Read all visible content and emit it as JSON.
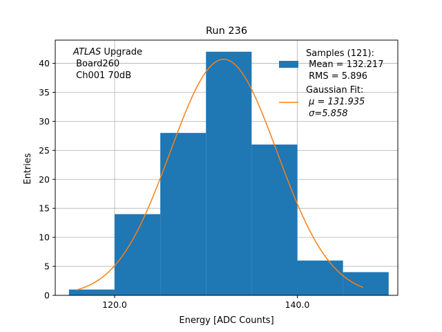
{
  "chart_data": {
    "type": "bar",
    "title": "Run 236",
    "xlabel": "Energy [ADC Counts]",
    "ylabel": "Entries",
    "xlim": [
      113.5,
      151.0
    ],
    "ylim": [
      0,
      44
    ],
    "x_ticks": [
      120.0,
      140.0
    ],
    "x_tick_labels": [
      "120.0",
      "140.0"
    ],
    "y_ticks": [
      0,
      5,
      10,
      15,
      20,
      25,
      30,
      35,
      40
    ],
    "y_tick_labels": [
      "0",
      "5",
      "10",
      "15",
      "20",
      "25",
      "30",
      "35",
      "40"
    ],
    "grid": true,
    "bins": [
      {
        "x0": 115.0,
        "x1": 120.0,
        "count": 1
      },
      {
        "x0": 120.0,
        "x1": 125.0,
        "count": 14
      },
      {
        "x0": 125.0,
        "x1": 130.0,
        "count": 28
      },
      {
        "x0": 130.0,
        "x1": 135.0,
        "count": 42
      },
      {
        "x0": 135.0,
        "x1": 140.0,
        "count": 26
      },
      {
        "x0": 140.0,
        "x1": 145.0,
        "count": 6
      },
      {
        "x0": 145.0,
        "x1": 150.0,
        "count": 4
      }
    ],
    "fit": {
      "type": "gaussian",
      "amplitude": 40.7,
      "mu": 131.935,
      "sigma": 5.858,
      "x_range": [
        115.8,
        147.2
      ]
    },
    "colors": {
      "bars": "#1f77b4",
      "fit": "#ff7f0e",
      "grid": "#b0b0b0"
    },
    "annotation": {
      "italic_part": "ATLAS",
      "text_part": " Upgrade",
      "line2": " Board260",
      "line3": " Ch001 70dB"
    },
    "legend": {
      "position": "top-right",
      "samples_label": "Samples (121):",
      "samples_mean": " Mean = 132.217",
      "samples_rms": " RMS = 5.896",
      "fit_label": "Gaussian Fit:",
      "fit_mu": " μ = 131.935",
      "fit_sigma": " σ=5.858"
    }
  }
}
